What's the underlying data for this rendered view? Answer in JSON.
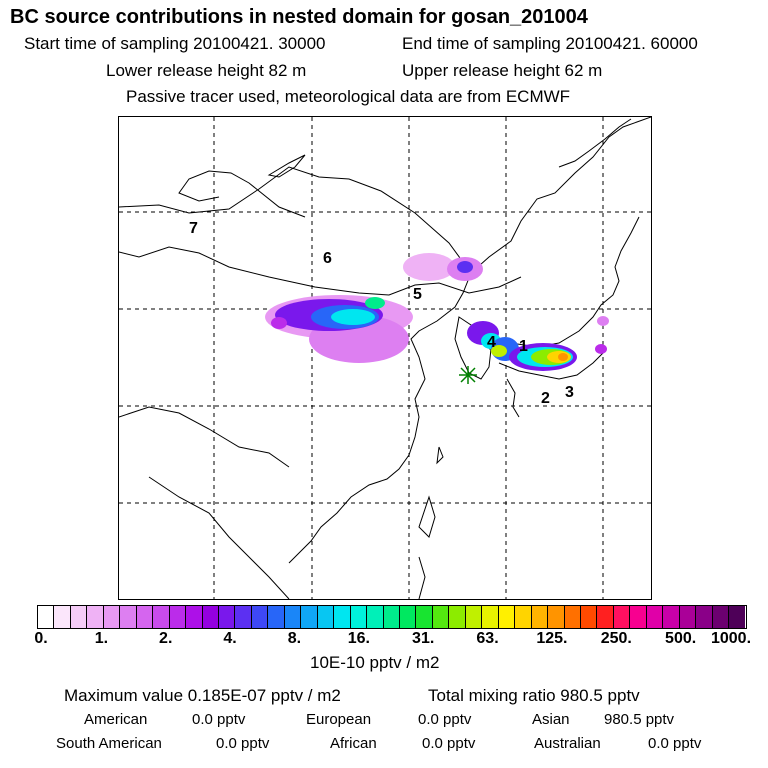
{
  "header": {
    "title": "BC  source contributions in nested domain for gosan_201004",
    "start_label": "Start time of sampling 20100421. 30000",
    "end_label": "End time of sampling 20100421. 60000",
    "lower_height": "Lower release height   82 m",
    "upper_height": "Upper release height   62 m",
    "note": "Passive tracer used, meteorological data are from ECMWF"
  },
  "map": {
    "region_labels": [
      "1",
      "2",
      "3",
      "4",
      "5",
      "6",
      "7"
    ],
    "receptor_marker": "star-icon"
  },
  "colorbar": {
    "tick_labels": [
      "0.",
      "1.",
      "2.",
      "4.",
      "8.",
      "16.",
      "31.",
      "63.",
      "125.",
      "250.",
      "500.",
      "1000."
    ],
    "colors": [
      "#ffffff",
      "#fbe6fb",
      "#f5ccf7",
      "#efb2f5",
      "#e899f3",
      "#dd7ff1",
      "#d565ef",
      "#c94bec",
      "#bb2cea",
      "#ad10e8",
      "#9400e0",
      "#7a18ec",
      "#5c30f2",
      "#3e48f6",
      "#2866f8",
      "#1a86f8",
      "#10a6f6",
      "#08c6f2",
      "#00e6f0",
      "#00f2dc",
      "#00f0b8",
      "#00ec8c",
      "#00e860",
      "#18e430",
      "#54e810",
      "#8cec00",
      "#c0f000",
      "#e8f200",
      "#fff000",
      "#ffd400",
      "#ffb400",
      "#ff9400",
      "#ff7000",
      "#ff4a00",
      "#ff2020",
      "#ff1060",
      "#f80090",
      "#e000a8",
      "#c800a8",
      "#aa0098",
      "#8a0088",
      "#6c0070",
      "#4e0058"
    ],
    "units": "10E-10 pptv / m2"
  },
  "summary": {
    "max_value": "Maximum value  0.185E-07 pptv / m2",
    "total_mixing": "Total mixing ratio     980.5 pptv",
    "american_label": "American",
    "american_value": "0.0 pptv",
    "european_label": "European",
    "european_value": "0.0 pptv",
    "asian_label": "Asian",
    "asian_value": "980.5 pptv",
    "southamerican_label": "South American",
    "southamerican_value": "0.0 pptv",
    "african_label": "African",
    "african_value": "0.0 pptv",
    "australian_label": "Australian",
    "australian_value": "0.0 pptv"
  }
}
